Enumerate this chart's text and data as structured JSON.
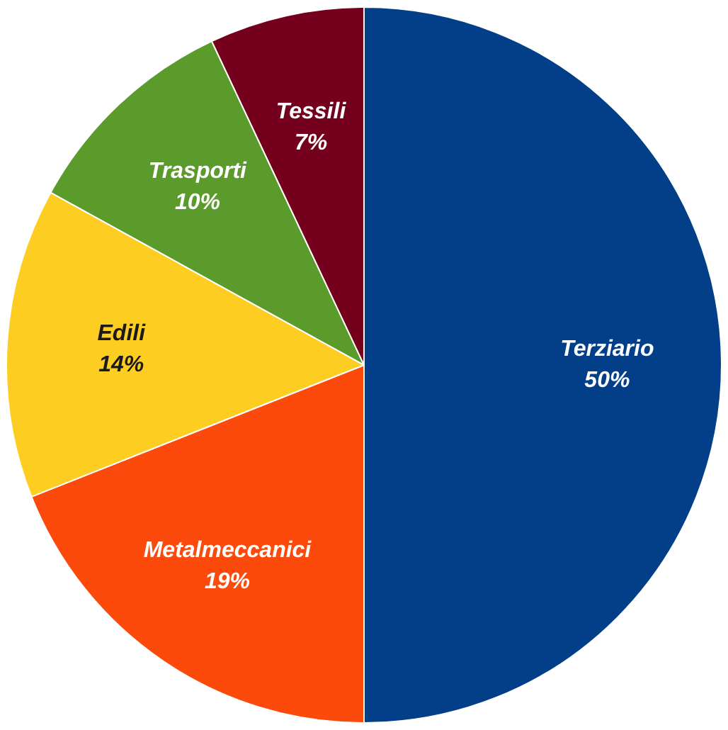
{
  "chart_data": {
    "type": "pie",
    "categories": [
      "Terziario",
      "Metalmeccanici",
      "Edili",
      "Trasporti",
      "Tessili"
    ],
    "values": [
      50,
      19,
      14,
      10,
      7
    ],
    "value_labels": [
      "50%",
      "19%",
      "14%",
      "10%",
      "7%"
    ],
    "colors": [
      "#023f88",
      "#fb4a0c",
      "#fdcd22",
      "#5b9b2c",
      "#75001e"
    ],
    "legend": false
  }
}
